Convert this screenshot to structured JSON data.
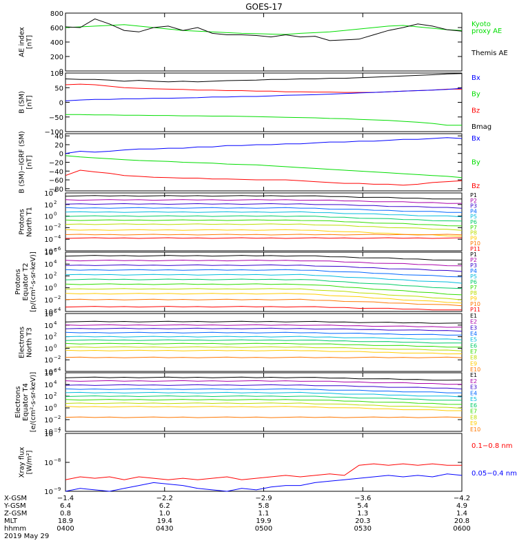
{
  "title": "GOES-17",
  "colors": {
    "black": "#000000",
    "red": "#ff0000",
    "green": "#00dd00",
    "blue": "#0000ff",
    "p_scale": [
      "#000000",
      "#aa00aa",
      "#3300cc",
      "#0066ff",
      "#00bbdd",
      "#00cc66",
      "#33dd00",
      "#bbdd00",
      "#ffcc00",
      "#ff7700",
      "#ff0000"
    ]
  },
  "chart_data": [
    {
      "id": "ae",
      "type": "line",
      "ylabel": [
        "AE index",
        "[nT]"
      ],
      "ylim": [
        0,
        800
      ],
      "ticks": [
        "0",
        "200",
        "400",
        "600",
        "800"
      ],
      "tick_values": [
        0,
        200,
        400,
        600,
        800
      ],
      "legend": [
        "Kyoto",
        "proxy AE",
        "Themis AE"
      ],
      "series": [
        {
          "name": "Kyoto proxy AE",
          "color_key": "green",
          "values": [
            600,
            610,
            620,
            630,
            640,
            620,
            600,
            580,
            560,
            550,
            540,
            530,
            520,
            515,
            510,
            505,
            520,
            530,
            540,
            560,
            580,
            600,
            620,
            630,
            610,
            590,
            570,
            560
          ]
        },
        {
          "name": "Themis AE",
          "color_key": "black",
          "values": [
            610,
            600,
            720,
            650,
            560,
            540,
            600,
            620,
            560,
            600,
            520,
            500,
            500,
            490,
            470,
            500,
            470,
            480,
            420,
            430,
            440,
            500,
            560,
            600,
            650,
            620,
            570,
            550
          ]
        }
      ]
    },
    {
      "id": "bsm",
      "type": "line",
      "ylabel": [
        "B (SM)",
        "[nT]"
      ],
      "ylim": [
        -100,
        100
      ],
      "ticks": [
        "−100",
        "−50",
        "0",
        "50",
        "100"
      ],
      "tick_values": [
        -100,
        -50,
        0,
        50,
        100
      ],
      "legend": [
        "Bx",
        "By",
        "Bz",
        "Bmag"
      ],
      "series": [
        {
          "name": "Bmag",
          "color_key": "black",
          "values": [
            80,
            78,
            78,
            76,
            72,
            75,
            72,
            70,
            72,
            70,
            72,
            74,
            75,
            76,
            78,
            78,
            80,
            80,
            82,
            82,
            84,
            86,
            88,
            90,
            92,
            94,
            97,
            98
          ]
        },
        {
          "name": "Bz",
          "color_key": "red",
          "values": [
            60,
            62,
            60,
            55,
            50,
            48,
            46,
            45,
            44,
            42,
            42,
            40,
            40,
            38,
            38,
            36,
            36,
            35,
            35,
            34,
            34,
            34,
            36,
            38,
            40,
            42,
            45,
            45
          ]
        },
        {
          "name": "Bx",
          "color_key": "blue",
          "values": [
            5,
            8,
            10,
            10,
            12,
            12,
            14,
            14,
            15,
            16,
            18,
            18,
            20,
            20,
            22,
            24,
            25,
            26,
            28,
            30,
            32,
            34,
            36,
            38,
            40,
            42,
            44,
            48
          ]
        },
        {
          "name": "By",
          "color_key": "green",
          "values": [
            -42,
            -42,
            -43,
            -43,
            -44,
            -44,
            -45,
            -45,
            -46,
            -46,
            -47,
            -47,
            -48,
            -49,
            -50,
            -51,
            -52,
            -53,
            -55,
            -56,
            -58,
            -60,
            -62,
            -65,
            -68,
            -72,
            -78,
            -78
          ]
        }
      ]
    },
    {
      "id": "bigrf",
      "type": "line",
      "ylabel": [
        "B (SM)−IGRF (SM)",
        "[nT]"
      ],
      "ylim": [
        -85,
        45
      ],
      "ticks": [
        "−80",
        "−60",
        "−40",
        "−20",
        "0",
        "20",
        "40"
      ],
      "tick_values": [
        -80,
        -60,
        -40,
        -20,
        0,
        20,
        40
      ],
      "legend": [
        "Bx",
        "By",
        "Bz"
      ],
      "series": [
        {
          "name": "Bx",
          "color_key": "blue",
          "values": [
            0,
            5,
            3,
            5,
            8,
            10,
            10,
            12,
            12,
            15,
            15,
            18,
            18,
            20,
            20,
            22,
            22,
            24,
            26,
            26,
            28,
            28,
            30,
            32,
            32,
            34,
            36,
            34
          ]
        },
        {
          "name": "By",
          "color_key": "green",
          "values": [
            -5,
            -8,
            -10,
            -12,
            -14,
            -16,
            -17,
            -18,
            -20,
            -21,
            -22,
            -24,
            -25,
            -26,
            -28,
            -30,
            -32,
            -34,
            -36,
            -38,
            -40,
            -42,
            -44,
            -46,
            -48,
            -50,
            -52,
            -55
          ]
        },
        {
          "name": "Bz",
          "color_key": "red",
          "values": [
            -50,
            -38,
            -42,
            -45,
            -50,
            -52,
            -54,
            -55,
            -56,
            -56,
            -58,
            -58,
            -59,
            -60,
            -60,
            -60,
            -62,
            -64,
            -66,
            -68,
            -68,
            -70,
            -70,
            -72,
            -70,
            -66,
            -64,
            -62
          ]
        }
      ]
    },
    {
      "id": "prot_t1",
      "type": "line",
      "log": true,
      "ylabel": [
        "Protons",
        "North T1"
      ],
      "ylim_exp": [
        -6,
        4
      ],
      "ticks_exp": [
        -6,
        -4,
        -2,
        0,
        2,
        4
      ],
      "legend": [
        "P1",
        "P2",
        "P3",
        "P4",
        "P5",
        "P6",
        "P7",
        "P8",
        "P9",
        "P10",
        "P11"
      ],
      "levels_exp": [
        3.5,
        2.8,
        2.1,
        1.4,
        0.7,
        0.0,
        -0.7,
        -1.4,
        -2.4,
        -3.2,
        -3.8
      ],
      "drops_exp": [
        0.6,
        0.6,
        0.7,
        0.8,
        0.8,
        0.9,
        1.0,
        1.0,
        1.1,
        0,
        0
      ]
    },
    {
      "id": "prot_t2",
      "type": "line",
      "log": true,
      "ylabel": [
        "Protons",
        "Equator T2",
        "[p/(cm²-s-sr-keV)]"
      ],
      "ylim_exp": [
        -4,
        6
      ],
      "ticks_exp": [
        -4,
        -2,
        0,
        2,
        4,
        6
      ],
      "legend": [
        "P1",
        "P2",
        "P3",
        "P4",
        "P5",
        "P6",
        "P7",
        "P8",
        "P9",
        "P10",
        "P11"
      ],
      "levels_exp": [
        5.4,
        4.6,
        3.8,
        3.0,
        2.2,
        1.4,
        0.6,
        -0.2,
        -1.0,
        -2.0,
        -3.2
      ],
      "drops_exp": [
        0.8,
        0.9,
        1.0,
        1.2,
        1.4,
        1.6,
        1.8,
        1.8,
        1.6,
        1.0,
        0.6
      ]
    },
    {
      "id": "elec_t3",
      "type": "line",
      "log": true,
      "ylabel": [
        "Electrons",
        "North T3"
      ],
      "ylim_exp": [
        -4,
        6
      ],
      "ticks_exp": [
        -4,
        -2,
        0,
        2,
        4,
        6
      ],
      "legend": [
        "E1",
        "E2",
        "E3",
        "E4",
        "E5",
        "E6",
        "E7",
        "E8",
        "E9",
        "E10"
      ],
      "levels_exp": [
        4.6,
        4.0,
        3.4,
        2.7,
        2.0,
        1.4,
        0.8,
        0.2,
        -0.4,
        -1.6
      ],
      "drops_exp": [
        0.3,
        0.35,
        0.4,
        0.45,
        0.5,
        0.55,
        0.6,
        0.6,
        0.6,
        0
      ]
    },
    {
      "id": "elec_t4",
      "type": "line",
      "log": true,
      "ylabel": [
        "Electrons",
        "Equator T4",
        "[e/(cm²-s-sr-keV)]"
      ],
      "ylim_exp": [
        -4,
        6
      ],
      "ticks_exp": [
        -4,
        -2,
        0,
        2,
        4,
        6
      ],
      "legend": [
        "E1",
        "E2",
        "E3",
        "E4",
        "E5",
        "E6",
        "E7",
        "E8",
        "E9",
        "E10"
      ],
      "levels_exp": [
        5.2,
        4.6,
        3.9,
        3.2,
        2.6,
        2.0,
        1.4,
        0.8,
        0.2,
        -1.6
      ],
      "drops_exp": [
        0.5,
        0.55,
        0.6,
        0.65,
        0.7,
        0.75,
        0.8,
        0.8,
        0.7,
        0
      ]
    },
    {
      "id": "xray",
      "type": "line",
      "log": true,
      "ylabel": [
        "Xray flux",
        "[W/m²]"
      ],
      "ylim_exp": [
        -9,
        -7
      ],
      "ticks_exp": [
        -9,
        -8,
        -7
      ],
      "legend": [
        "0.1−0.8 nm",
        "0.05−0.4 nm"
      ],
      "series": [
        {
          "name": "0.1−0.8 nm",
          "color_key": "red",
          "values_exp": [
            -8.6,
            -8.5,
            -8.55,
            -8.5,
            -8.6,
            -8.5,
            -8.55,
            -8.6,
            -8.55,
            -8.6,
            -8.55,
            -8.5,
            -8.6,
            -8.55,
            -8.5,
            -8.45,
            -8.5,
            -8.45,
            -8.4,
            -8.45,
            -8.1,
            -8.05,
            -8.1,
            -8.05,
            -8.1,
            -8.05,
            -8.1,
            -8.1
          ]
        },
        {
          "name": "0.05−0.4 nm",
          "color_key": "blue",
          "values_exp": [
            -9.0,
            -8.9,
            -8.95,
            -9.0,
            -8.9,
            -8.8,
            -8.7,
            -8.75,
            -8.8,
            -8.9,
            -8.95,
            -9.0,
            -8.9,
            -8.95,
            -8.85,
            -8.8,
            -8.8,
            -8.7,
            -8.65,
            -8.6,
            -8.55,
            -8.5,
            -8.45,
            -8.5,
            -8.45,
            -8.5,
            -8.4,
            -8.45
          ]
        }
      ]
    }
  ],
  "axis": {
    "rows": [
      {
        "label": "X-GSM",
        "values": [
          "−1.4",
          "−2.2",
          "−2.9",
          "−3.6",
          "−4.2"
        ]
      },
      {
        "label": "Y-GSM",
        "values": [
          "6.4",
          "6.2",
          "5.8",
          "5.4",
          "4.9"
        ]
      },
      {
        "label": "Z-GSM",
        "values": [
          "0.8",
          "1.0",
          "1.1",
          "1.3",
          "1.4"
        ]
      },
      {
        "label": "MLT",
        "values": [
          "18.9",
          "19.4",
          "19.9",
          "20.3",
          "20.8"
        ]
      },
      {
        "label": "hhmm",
        "values": [
          "0400",
          "0430",
          "0500",
          "0530",
          "0600"
        ]
      }
    ],
    "date": "2019 May 29"
  }
}
